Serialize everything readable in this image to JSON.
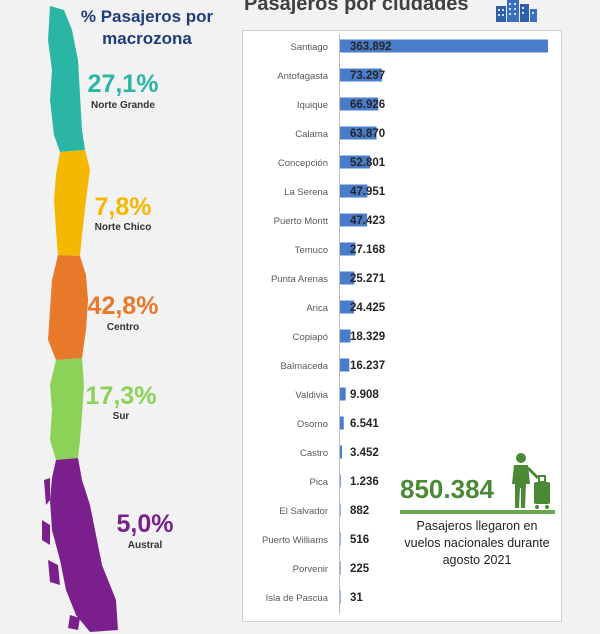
{
  "left": {
    "title": "% Pasajeros por macrozona",
    "zones": [
      {
        "pct": "27,1%",
        "name": "Norte Grande",
        "color": "#2bb5a5"
      },
      {
        "pct": "7,8%",
        "name": "Norte Chico",
        "color": "#f5b800"
      },
      {
        "pct": "42,8%",
        "name": "Centro",
        "color": "#e8782a"
      },
      {
        "pct": "17,3%",
        "name": "Sur",
        "color": "#8cd158"
      },
      {
        "pct": "5,0%",
        "name": "Austral",
        "color": "#7a1f8c"
      }
    ]
  },
  "right_title": "Pasajeros por ciudades",
  "total": "850.384",
  "caption": "Pasajeros llegaron en vuelos nacionales durante agosto 2021",
  "colors": {
    "bar": "#4a7ccc",
    "accent": "#4a8a36"
  },
  "chart_data": {
    "type": "bar",
    "orientation": "horizontal",
    "title": "Pasajeros por ciudades",
    "categories": [
      "Santiago",
      "Antofagasta",
      "Iquique",
      "Calama",
      "Concepción",
      "La Serena",
      "Puerto Montt",
      "Temuco",
      "Punta Arenas",
      "Arica",
      "Copiapó",
      "Balmaceda",
      "Valdivia",
      "Osorno",
      "Castro",
      "Pica",
      "El Salvador",
      "Puerto Williams",
      "Porvenir",
      "Isla de Pascua"
    ],
    "values": [
      363892,
      73297,
      66926,
      63870,
      52801,
      47951,
      47423,
      27168,
      25271,
      24425,
      18329,
      16237,
      9908,
      6541,
      3452,
      1236,
      882,
      516,
      225,
      31
    ],
    "labels": [
      "363.892",
      "73.297",
      "66.926",
      "63.870",
      "52.801",
      "47.951",
      "47.423",
      "27.168",
      "25.271",
      "24.425",
      "18.329",
      "16.237",
      "9.908",
      "6.541",
      "3.452",
      "1.236",
      "882",
      "516",
      "225",
      "31"
    ],
    "grid": false
  }
}
